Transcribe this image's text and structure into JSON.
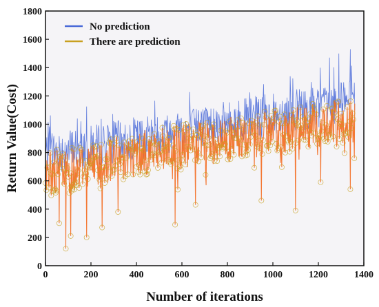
{
  "chart_data": {
    "type": "line",
    "title": "",
    "xlabel": "Number of iterations",
    "ylabel": "Return Value(Cost)",
    "xlim": [
      0,
      1400
    ],
    "ylim": [
      0,
      1800
    ],
    "xticks": [
      0,
      200,
      400,
      600,
      800,
      1000,
      1200,
      1400
    ],
    "yticks": [
      0,
      200,
      400,
      600,
      800,
      1000,
      1200,
      1400,
      1600,
      1800
    ],
    "legend_position": "top-left",
    "grid": false,
    "x_range_data": [
      0,
      1360
    ],
    "series": [
      {
        "name": "No prediction",
        "color": "#4a6ad8",
        "trend_x": [
          0,
          200,
          400,
          600,
          800,
          1000,
          1200,
          1360
        ],
        "trend_y": [
          780,
          830,
          880,
          940,
          1000,
          1050,
          1110,
          1150
        ],
        "spread": 150,
        "peaks": [
          [
            1340,
            1530
          ],
          [
            1290,
            1500
          ],
          [
            1250,
            1470
          ]
        ]
      },
      {
        "name": "There are prediction",
        "color": "#c8a020",
        "fill_color": "#f46a1e",
        "marker": "circle",
        "trend_x": [
          0,
          200,
          400,
          600,
          800,
          1000,
          1200,
          1360
        ],
        "trend_y": [
          640,
          720,
          790,
          840,
          890,
          940,
          990,
          1030
        ],
        "spread": 160,
        "low_points": [
          [
            90,
            120
          ],
          [
            180,
            200
          ],
          [
            110,
            210
          ],
          [
            570,
            290
          ],
          [
            250,
            270
          ],
          [
            1100,
            390
          ],
          [
            1340,
            540
          ],
          [
            1210,
            590
          ],
          [
            950,
            460
          ],
          [
            660,
            430
          ],
          [
            320,
            380
          ],
          [
            60,
            300
          ]
        ]
      }
    ]
  }
}
